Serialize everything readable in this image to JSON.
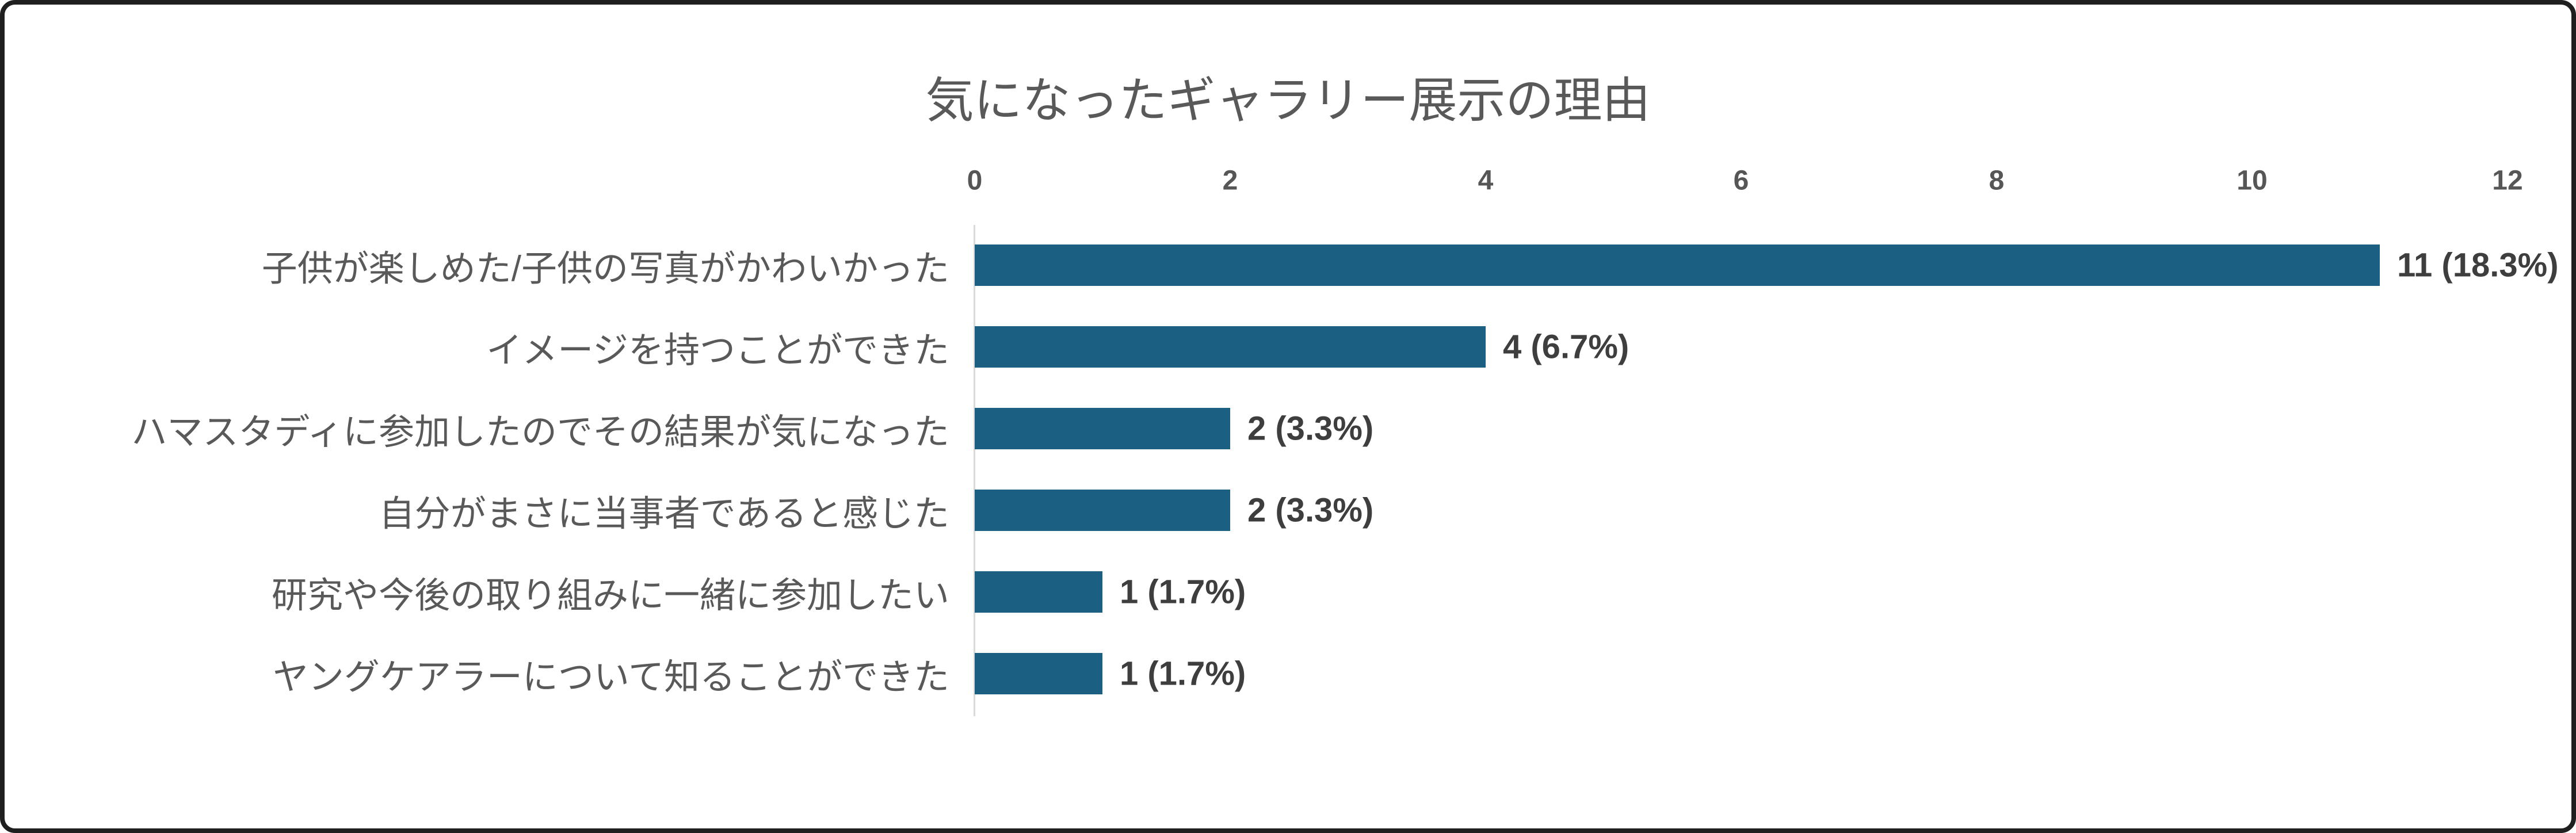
{
  "colors": {
    "bar": "#1B5F82",
    "title_text": "#595959",
    "category_text": "#595959",
    "tick_text": "#565656",
    "value_text": "#3E3E3E",
    "axis_line": "#D9D9D9",
    "frame_border": "#1F1F1F",
    "background": "#FFFFFF"
  },
  "chart_data": {
    "type": "bar",
    "orientation": "horizontal",
    "title": "気になったギャラリー展示の理由",
    "categories": [
      "子供が楽しめた/子供の写真がかわいかった",
      "イメージを持つことができた",
      "ハマスタディに参加したのでその結果が気になった",
      "自分がまさに当事者であると感じた",
      "研究や今後の取り組みに一緒に参加したい",
      "ヤングケアラーについて知ることができた"
    ],
    "values": [
      11,
      4,
      2,
      2,
      1,
      1
    ],
    "value_labels": [
      "11 (18.3%)",
      "4 (6.7%)",
      "2 (3.3%)",
      "2 (3.3%)",
      "1 (1.7%)",
      "1 (1.7%)"
    ],
    "xticks": [
      0,
      2,
      4,
      6,
      8,
      10,
      12
    ],
    "xlim": [
      0,
      12
    ],
    "xaxis_side": "top",
    "xlabel": "",
    "ylabel": "",
    "grid": false,
    "legend": "none"
  }
}
